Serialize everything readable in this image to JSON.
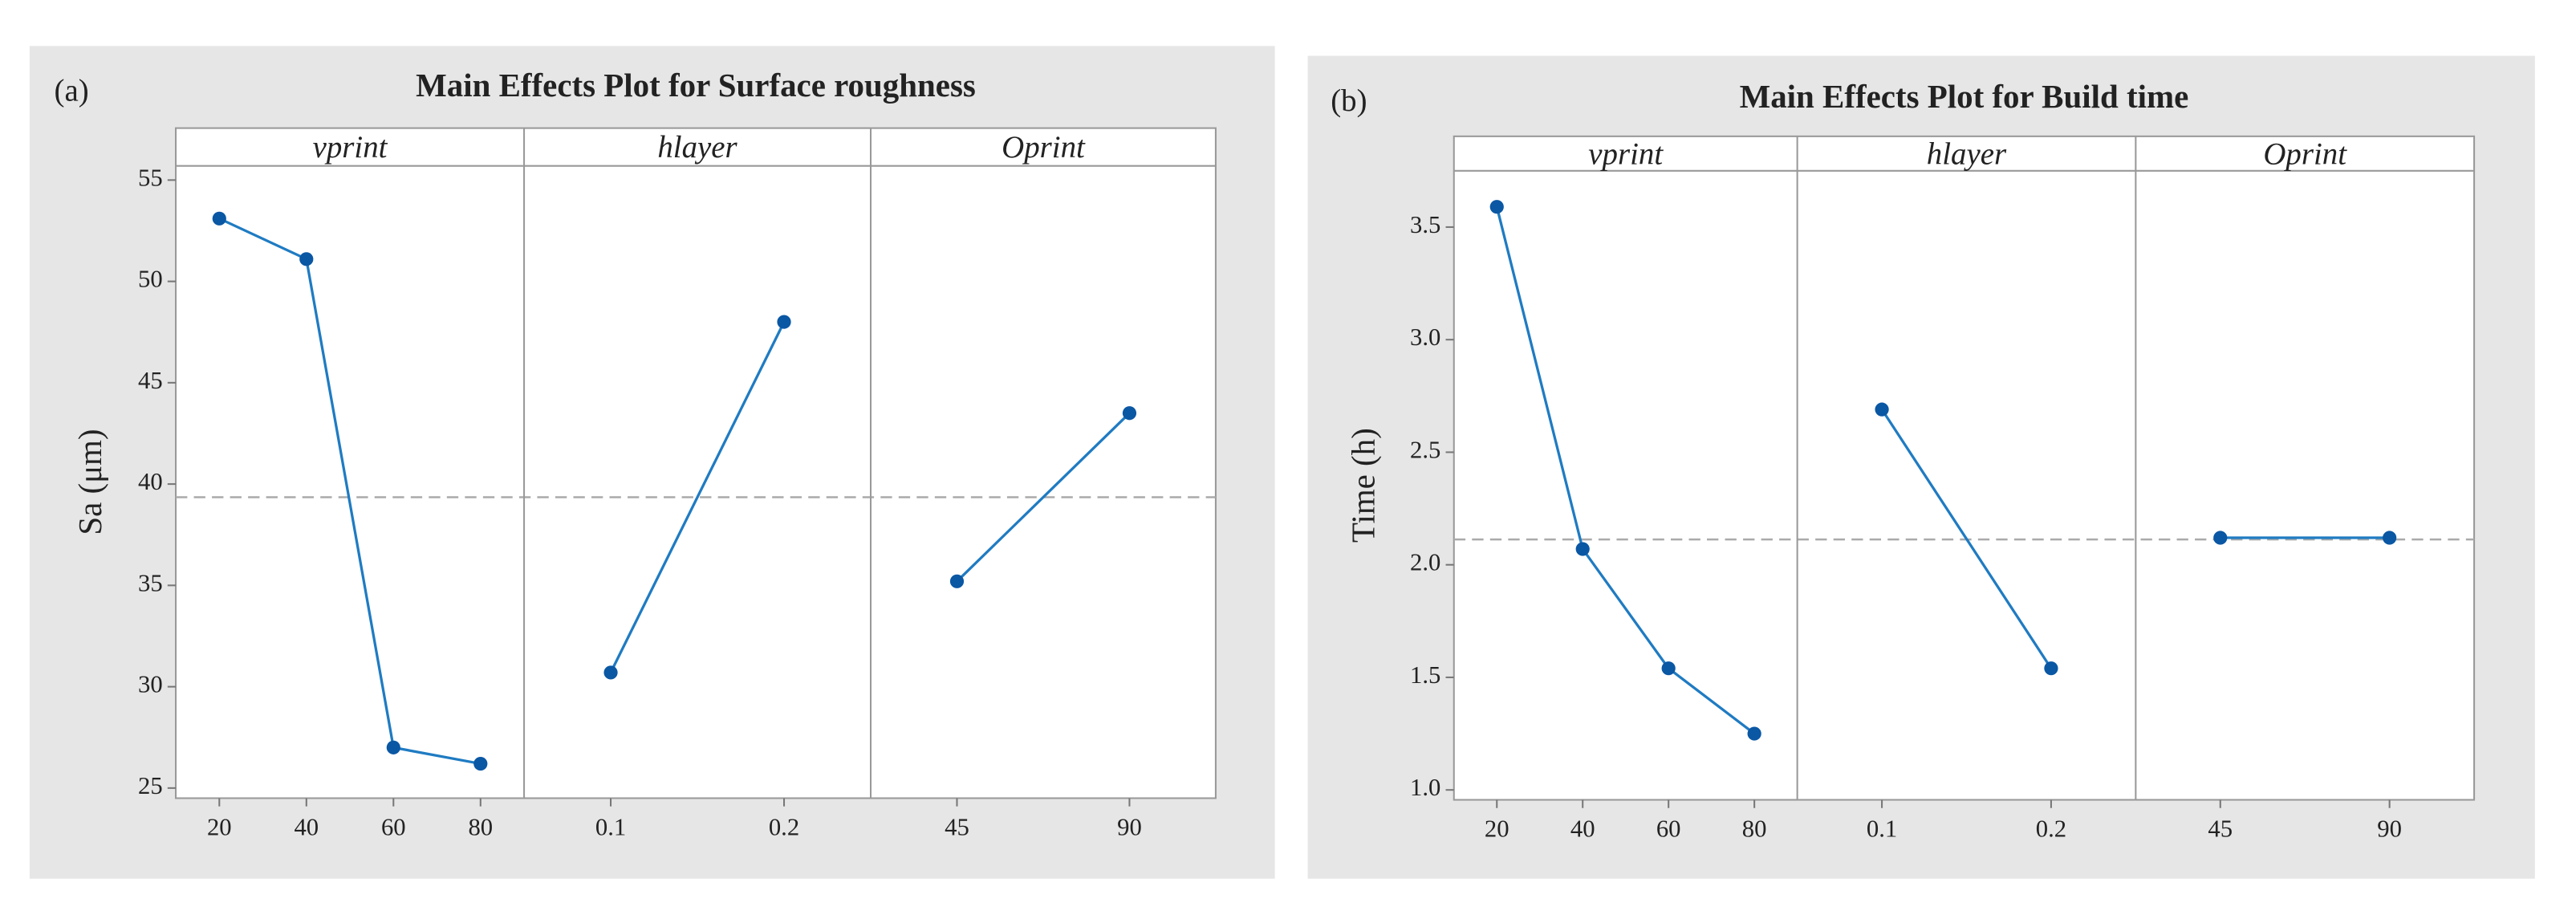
{
  "chart_data": [
    {
      "type": "main-effects",
      "label": "(a)",
      "title": "Main Effects Plot for Surface roughness",
      "ylabel": "Sa (μm)",
      "ylim": [
        24.5,
        55.7
      ],
      "yticks": [
        25,
        30,
        35,
        40,
        45,
        50,
        55
      ],
      "reference_line": 39.35,
      "color": "#1f7bc2",
      "marker_color": "#0a57a4",
      "panels": [
        {
          "name": "vprint",
          "categories": [
            "20",
            "40",
            "60",
            "80"
          ],
          "values": [
            53.1,
            51.1,
            27.0,
            26.2
          ]
        },
        {
          "name": "hlayer",
          "categories": [
            "0.1",
            "0.2"
          ],
          "values": [
            30.7,
            48.0
          ]
        },
        {
          "name": "Oprint",
          "categories": [
            "45",
            "90"
          ],
          "values": [
            35.2,
            43.5
          ]
        }
      ]
    },
    {
      "type": "main-effects",
      "label": "(b)",
      "title": "Main Effects Plot for Build time",
      "ylabel": "Time (h)",
      "ylim": [
        0.956,
        3.75
      ],
      "yticks": [
        {
          "value": 1,
          "label": "1.0"
        },
        1.5,
        {
          "value": 2,
          "label": "2.0"
        },
        2.5,
        {
          "value": 3,
          "label": "3.0"
        },
        3.5
      ],
      "reference_line": 2.1125,
      "color": "#1f7bc2",
      "marker_color": "#0a57a4",
      "panels": [
        {
          "name": "vprint",
          "categories": [
            "20",
            "40",
            "60",
            "80"
          ],
          "values": [
            3.59,
            2.07,
            1.54,
            1.25
          ]
        },
        {
          "name": "hlayer",
          "categories": [
            "0.1",
            "0.2"
          ],
          "values": [
            2.69,
            1.54
          ]
        },
        {
          "name": "Oprint",
          "categories": [
            "45",
            "90"
          ],
          "values": [
            2.12,
            2.12
          ]
        }
      ]
    }
  ]
}
